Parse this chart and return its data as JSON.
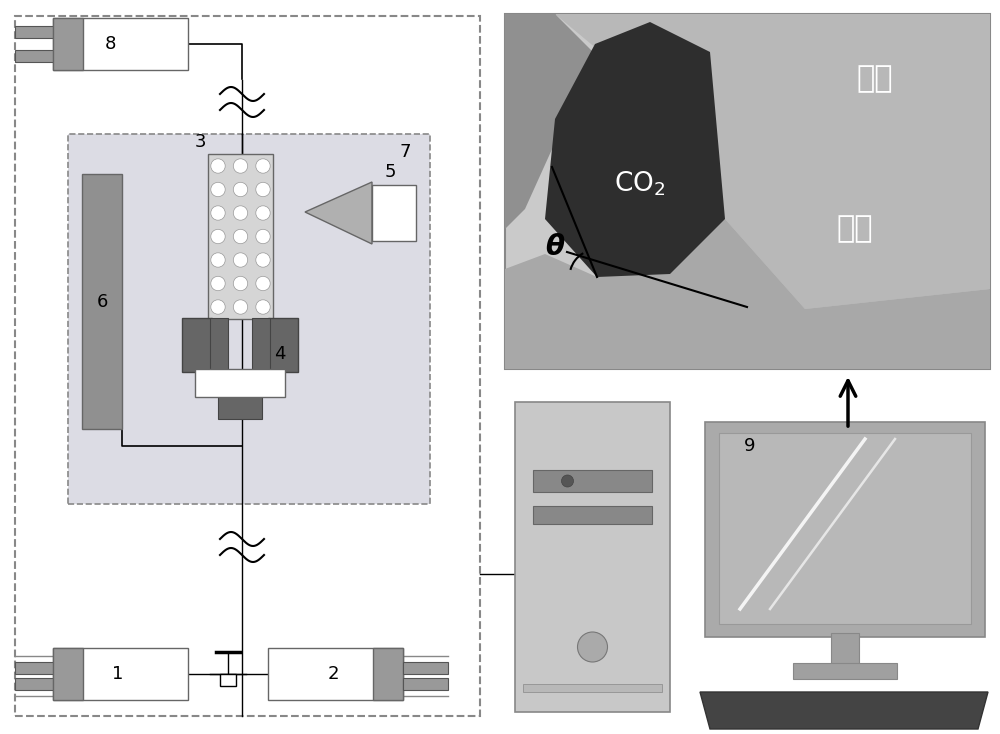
{
  "bg_color": "#ffffff",
  "outer_dashed_color": "#888888",
  "inner_box_fc": "#dcdce8",
  "inner_box_ec": "#888888",
  "panel_bg": "#d0d0d0",
  "co2_dark": "#303030",
  "rock_medium": "#b0b0b0",
  "rock_dark": "#888888",
  "salt_medium": "#a0a0a0",
  "comp6_fc": "#909090",
  "comp6_ec": "#666666",
  "pillar_fc": "#666666",
  "pillar_ec": "#444444",
  "white_block_fc": "#ffffff",
  "pump_box_fc": "#ffffff",
  "pump_gray_fc": "#909090",
  "tilde_color": "#000000",
  "line_color": "#000000",
  "label_fontsize": 13,
  "label_color": "#000000"
}
